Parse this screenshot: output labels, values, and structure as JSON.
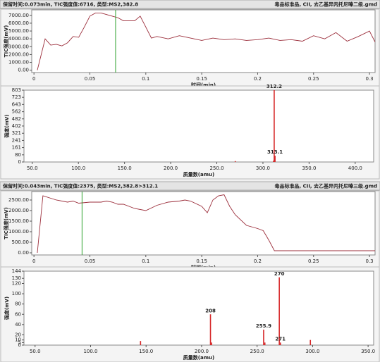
{
  "chart_data": [
    {
      "type": "line",
      "title": "保留时间:0.073min, TIC强度值:6716, 类型:MS2,382.8",
      "subtitle": "毒品标准品, CII, 去乙基异丙托尼嗪二级.gmd",
      "x_label": "时间(min)",
      "y_label": "TIC强度(mV)",
      "color": "#9b2d3a",
      "cursor_x": 0.073,
      "cursor_color": "#2ca02c",
      "x": [
        0.003,
        0.01,
        0.015,
        0.02,
        0.025,
        0.03,
        0.035,
        0.04,
        0.045,
        0.05,
        0.055,
        0.06,
        0.065,
        0.07,
        0.075,
        0.08,
        0.09,
        0.095,
        0.1,
        0.105,
        0.11,
        0.12,
        0.13,
        0.14,
        0.15,
        0.16,
        0.17,
        0.18,
        0.19,
        0.2,
        0.21,
        0.22,
        0.23,
        0.24,
        0.25,
        0.26,
        0.27,
        0.28,
        0.29,
        0.3,
        0.305
      ],
      "values": [
        0,
        4000,
        3200,
        3300,
        3100,
        3500,
        4300,
        4200,
        5500,
        6900,
        7300,
        7300,
        7100,
        6900,
        6700,
        6300,
        6300,
        6900,
        5500,
        4100,
        4300,
        4000,
        4400,
        4100,
        3800,
        4100,
        3900,
        4000,
        3800,
        3900,
        4100,
        3800,
        3900,
        3700,
        4400,
        4000,
        4800,
        3700,
        4300,
        5000,
        3600
      ],
      "xlim": [
        -0.002,
        0.305
      ],
      "ylim": [
        -300,
        7700
      ],
      "xticks": [
        0,
        0.05,
        0.1,
        0.15,
        0.2,
        0.25,
        0.3
      ],
      "yticks": [
        {
          "value": 0,
          "label": "0.00"
        },
        {
          "value": 1000,
          "label": "1000.00"
        },
        {
          "value": 2000,
          "label": "2000.00"
        },
        {
          "value": 3000,
          "label": "3000.00"
        },
        {
          "value": 4000,
          "label": "4000.00"
        },
        {
          "value": 5000,
          "label": "5000.00"
        },
        {
          "value": 6000,
          "label": "6000.00"
        },
        {
          "value": 7000,
          "label": "7000.00"
        }
      ]
    },
    {
      "type": "bar",
      "x_label": "质量数(amu)",
      "y_label": "强度(mV)",
      "series": [
        {
          "color": "#d62728",
          "labels": true,
          "x": [
            312.2,
            313.1
          ],
          "values": [
            803,
            70
          ]
        },
        {
          "color": "#d62728",
          "labels": false,
          "x": [
            270,
            311.5
          ],
          "values": [
            10,
            15
          ]
        }
      ],
      "xlim": [
        41,
        420
      ],
      "ylim": [
        0,
        803
      ],
      "xticks": [
        {
          "value": 50,
          "label": "50.0"
        },
        {
          "value": 100,
          "label": "100.0"
        },
        {
          "value": 150,
          "label": "150.0"
        },
        {
          "value": 200,
          "label": "200.0"
        },
        {
          "value": 250,
          "label": "250.0"
        },
        {
          "value": 300,
          "label": "300.0"
        },
        {
          "value": 350,
          "label": "350.0"
        },
        {
          "value": 400,
          "label": "400.0"
        }
      ],
      "yticks": [
        0,
        80,
        161,
        241,
        321,
        402,
        482,
        562,
        643,
        723,
        803
      ]
    },
    {
      "type": "line",
      "title": "保留时间:0.043min, TIC强度值:2375, 类型:MS2,382.8>312.1",
      "subtitle": "毒品标准品, CII, 去乙基异丙托尼嗪三级.gmd",
      "x_label": "时间(min)",
      "y_label": "TIC强度(mV)",
      "color": "#9b2d3a",
      "cursor_x": 0.043,
      "cursor_color": "#2ca02c",
      "x": [
        0.003,
        0.008,
        0.02,
        0.03,
        0.035,
        0.04,
        0.05,
        0.06,
        0.065,
        0.07,
        0.075,
        0.08,
        0.09,
        0.1,
        0.11,
        0.12,
        0.13,
        0.135,
        0.14,
        0.15,
        0.155,
        0.16,
        0.165,
        0.17,
        0.175,
        0.18,
        0.19,
        0.2,
        0.205,
        0.21,
        0.215,
        0.25,
        0.3,
        0.305
      ],
      "values": [
        0,
        2700,
        2500,
        2400,
        2450,
        2350,
        2400,
        2400,
        2450,
        2400,
        2300,
        2300,
        2100,
        2000,
        2250,
        2400,
        2450,
        2500,
        2450,
        2200,
        1900,
        2500,
        2700,
        2750,
        2200,
        1800,
        1300,
        1150,
        1050,
        600,
        100,
        100,
        100,
        100
      ],
      "xlim": [
        -0.002,
        0.305
      ],
      "ylim": [
        -100,
        2900
      ],
      "xticks": [
        0,
        0.05,
        0.1,
        0.15,
        0.2,
        0.25,
        0.3
      ],
      "yticks": [
        {
          "value": 0,
          "label": "0.00"
        },
        {
          "value": 500,
          "label": "500.00"
        },
        {
          "value": 1000,
          "label": "1000.00"
        },
        {
          "value": 1500,
          "label": "1500.00"
        },
        {
          "value": 2000,
          "label": "2000.00"
        },
        {
          "value": 2500,
          "label": "2500.00"
        }
      ]
    },
    {
      "type": "bar",
      "x_label": "质量数(amu)",
      "y_label": "强度(mV)",
      "series": [
        {
          "color": "#d62728",
          "labels": true,
          "x": [
            208,
            255.9,
            270,
            271
          ],
          "values": [
            60,
            30,
            132,
            5
          ]
        },
        {
          "color": "#d62728",
          "labels": false,
          "x": [
            145,
            209,
            257,
            298
          ],
          "values": [
            8,
            5,
            5,
            10
          ]
        }
      ],
      "xlim": [
        40,
        355
      ],
      "ylim": [
        0,
        144
      ],
      "xticks": [
        {
          "value": 50,
          "label": "50.0"
        },
        {
          "value": 100,
          "label": "100.0"
        },
        {
          "value": 150,
          "label": "150.0"
        },
        {
          "value": 200,
          "label": "200.0"
        },
        {
          "value": 250,
          "label": "250.0"
        },
        {
          "value": 300,
          "label": "300.0"
        },
        {
          "value": 350,
          "label": "350.0"
        }
      ],
      "yticks": [
        0,
        5,
        10,
        20,
        40,
        60,
        80,
        100,
        120,
        130,
        144
      ]
    }
  ]
}
